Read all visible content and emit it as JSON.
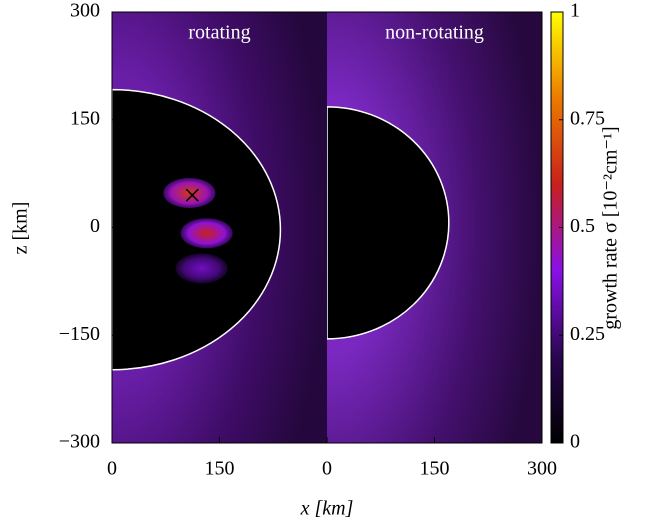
{
  "chart_data": {
    "type": "heatmap",
    "xlabel": "x [km]",
    "ylabel": "z [km]",
    "ylim": [
      -300,
      300
    ],
    "yticks": [
      {
        "value": -300,
        "label": "−300"
      },
      {
        "value": -150,
        "label": "−150"
      },
      0,
      150,
      300
    ],
    "colorbar": {
      "label": "growth rate σ [10⁻²cm⁻¹]",
      "lim": [
        0,
        1
      ],
      "ticks": [
        0,
        0.25,
        0.5,
        0.75,
        1
      ],
      "colormap": [
        "#000000",
        "#2a0650",
        "#8a10e8",
        "#c8201c",
        "#ec7a00",
        "#ffff00"
      ]
    },
    "panels": [
      {
        "title": "rotating",
        "xlim": [
          0,
          300
        ],
        "xticks": [
          0,
          150
        ],
        "shock": {
          "z_top": 192,
          "z_bottom": -198,
          "x_max": 235
        },
        "blobs": [
          {
            "x": 108,
            "z": 48,
            "value": 0.65
          },
          {
            "x": 132,
            "z": -8,
            "value": 0.6
          },
          {
            "x": 125,
            "z": -57,
            "value": 0.35
          }
        ],
        "marker": {
          "x": 112,
          "z": 45
        }
      },
      {
        "title": "non-rotating",
        "xlim": [
          0,
          300
        ],
        "xticks": [
          0,
          150,
          300
        ],
        "shock": {
          "z_top": 168,
          "z_bottom": -155,
          "x_max": 170
        },
        "blobs": [],
        "marker": null
      }
    ]
  }
}
